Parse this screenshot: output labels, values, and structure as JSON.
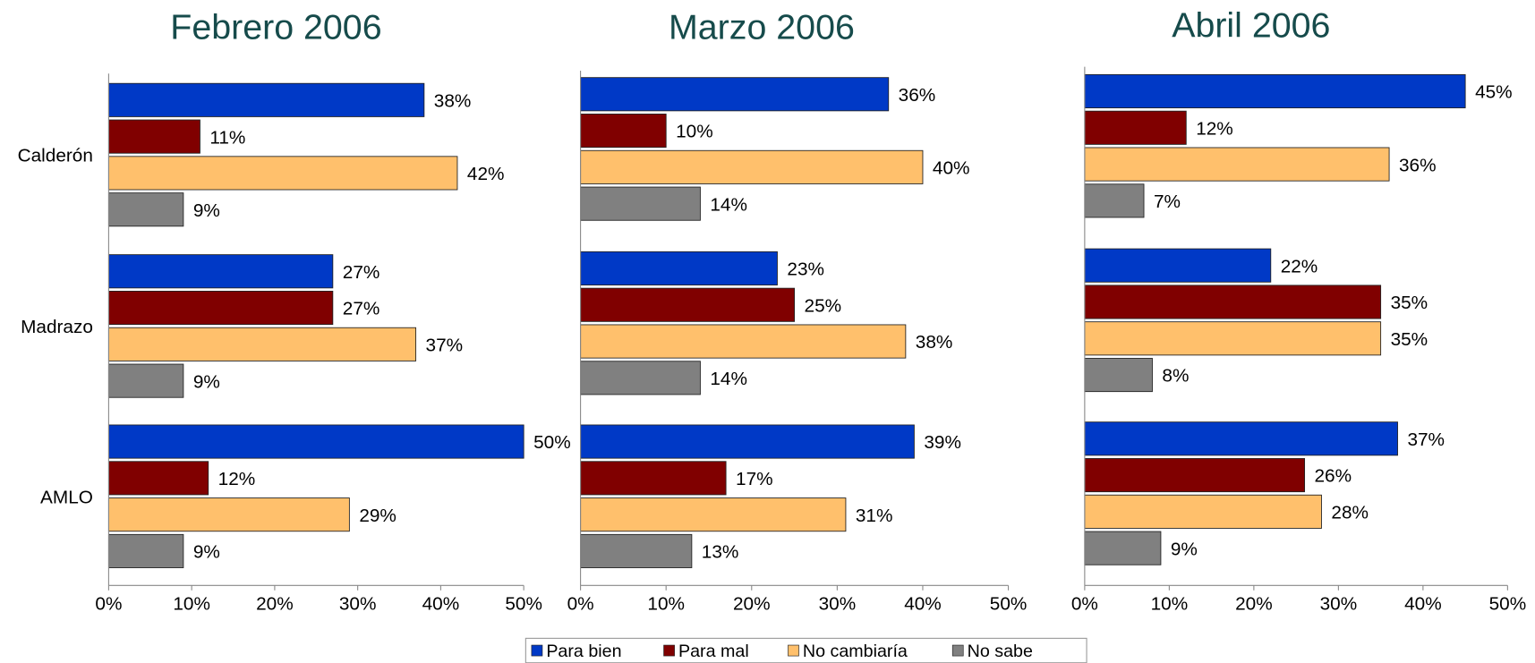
{
  "chart_data": [
    {
      "type": "bar",
      "orientation": "horizontal",
      "title": "Febrero 2006",
      "categories": [
        "Calderón",
        "Madrazo",
        "AMLO"
      ],
      "series": [
        {
          "name": "Para bien",
          "color": "#0039c6",
          "values": [
            38,
            27,
            50
          ],
          "value_labels": [
            "38%",
            "27%",
            "50%"
          ]
        },
        {
          "name": "Para mal",
          "color": "#800000",
          "values": [
            11,
            27,
            12
          ],
          "value_labels": [
            "11%",
            "27%",
            "12%"
          ]
        },
        {
          "name": "No cambiaría",
          "color": "#ffc06c",
          "values": [
            42,
            37,
            29
          ],
          "value_labels": [
            "42%",
            "37%",
            "29%"
          ]
        },
        {
          "name": "No sabe",
          "color": "#808080",
          "values": [
            9,
            9,
            9
          ],
          "value_labels": [
            "9%",
            "9%",
            "9%"
          ]
        }
      ],
      "xlim": [
        0,
        50
      ],
      "xticks": [
        {
          "value": 0,
          "label": "0%"
        },
        {
          "value": 10,
          "label": "10%"
        },
        {
          "value": 20,
          "label": "20%"
        },
        {
          "value": 30,
          "label": "30%"
        },
        {
          "value": 40,
          "label": "40%"
        },
        {
          "value": 50,
          "label": "50%"
        }
      ]
    },
    {
      "type": "bar",
      "orientation": "horizontal",
      "title": "Marzo 2006",
      "series": [
        {
          "color": "#0039c6",
          "values": [
            36,
            23,
            39
          ],
          "value_labels": [
            "36%",
            "23%",
            "39%"
          ]
        },
        {
          "color": "#800000",
          "values": [
            10,
            25,
            17
          ],
          "value_labels": [
            "10%",
            "25%",
            "17%"
          ]
        },
        {
          "color": "#ffc06c",
          "values": [
            40,
            38,
            31
          ],
          "value_labels": [
            "40%",
            "38%",
            "31%"
          ]
        },
        {
          "color": "#808080",
          "values": [
            14,
            14,
            13
          ],
          "value_labels": [
            "14%",
            "14%",
            "13%"
          ]
        }
      ],
      "xlim": [
        0,
        50
      ],
      "xticks": [
        {
          "value": 0,
          "label": "0%"
        },
        {
          "value": 10,
          "label": "10%"
        },
        {
          "value": 20,
          "label": "20%"
        },
        {
          "value": 30,
          "label": "30%"
        },
        {
          "value": 40,
          "label": "40%"
        },
        {
          "value": 50,
          "label": "50%"
        }
      ]
    },
    {
      "type": "bar",
      "orientation": "horizontal",
      "title": "Abril 2006",
      "series": [
        {
          "color": "#0039c6",
          "values": [
            45,
            22,
            37
          ],
          "value_labels": [
            "45%",
            "22%",
            "37%"
          ]
        },
        {
          "color": "#800000",
          "values": [
            12,
            35,
            26
          ],
          "value_labels": [
            "12%",
            "35%",
            "26%"
          ]
        },
        {
          "color": "#ffc06c",
          "values": [
            36,
            35,
            28
          ],
          "value_labels": [
            "36%",
            "35%",
            "28%"
          ]
        },
        {
          "color": "#808080",
          "values": [
            7,
            8,
            9
          ],
          "value_labels": [
            "7%",
            "8%",
            "9%"
          ]
        }
      ],
      "xlim": [
        0,
        50
      ],
      "xticks": [
        {
          "value": 0,
          "label": "0%"
        },
        {
          "value": 10,
          "label": "10%"
        },
        {
          "value": 20,
          "label": "20%"
        },
        {
          "value": 30,
          "label": "30%"
        },
        {
          "value": 40,
          "label": "40%"
        },
        {
          "value": 50,
          "label": "50%"
        }
      ]
    }
  ]
}
